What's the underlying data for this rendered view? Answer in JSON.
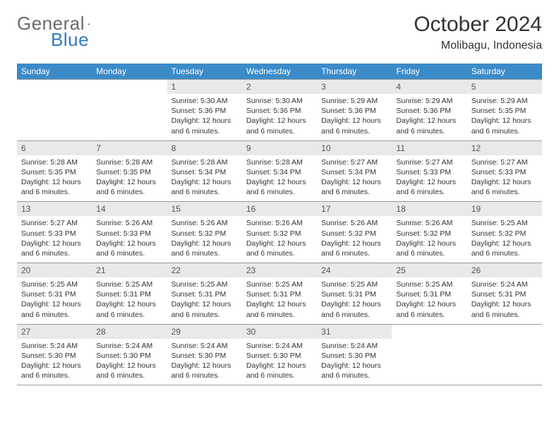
{
  "logo": {
    "word1": "General",
    "word2": "Blue"
  },
  "title": "October 2024",
  "subtitle": "Molibagu, Indonesia",
  "colors": {
    "header_bg": "#3b8bc9",
    "daynum_bg": "#e8e9ea",
    "border": "#9a9a9a",
    "logo_gray": "#676a6d",
    "logo_blue": "#2f7bbd"
  },
  "day_headers": [
    "Sunday",
    "Monday",
    "Tuesday",
    "Wednesday",
    "Thursday",
    "Friday",
    "Saturday"
  ],
  "weeks": [
    [
      {
        "blank": true
      },
      {
        "blank": true
      },
      {
        "n": "1",
        "sr": "5:30 AM",
        "ss": "5:36 PM",
        "dl": "12 hours and 6 minutes."
      },
      {
        "n": "2",
        "sr": "5:30 AM",
        "ss": "5:36 PM",
        "dl": "12 hours and 6 minutes."
      },
      {
        "n": "3",
        "sr": "5:29 AM",
        "ss": "5:36 PM",
        "dl": "12 hours and 6 minutes."
      },
      {
        "n": "4",
        "sr": "5:29 AM",
        "ss": "5:36 PM",
        "dl": "12 hours and 6 minutes."
      },
      {
        "n": "5",
        "sr": "5:29 AM",
        "ss": "5:35 PM",
        "dl": "12 hours and 6 minutes."
      }
    ],
    [
      {
        "n": "6",
        "sr": "5:28 AM",
        "ss": "5:35 PM",
        "dl": "12 hours and 6 minutes."
      },
      {
        "n": "7",
        "sr": "5:28 AM",
        "ss": "5:35 PM",
        "dl": "12 hours and 6 minutes."
      },
      {
        "n": "8",
        "sr": "5:28 AM",
        "ss": "5:34 PM",
        "dl": "12 hours and 6 minutes."
      },
      {
        "n": "9",
        "sr": "5:28 AM",
        "ss": "5:34 PM",
        "dl": "12 hours and 6 minutes."
      },
      {
        "n": "10",
        "sr": "5:27 AM",
        "ss": "5:34 PM",
        "dl": "12 hours and 6 minutes."
      },
      {
        "n": "11",
        "sr": "5:27 AM",
        "ss": "5:33 PM",
        "dl": "12 hours and 6 minutes."
      },
      {
        "n": "12",
        "sr": "5:27 AM",
        "ss": "5:33 PM",
        "dl": "12 hours and 6 minutes."
      }
    ],
    [
      {
        "n": "13",
        "sr": "5:27 AM",
        "ss": "5:33 PM",
        "dl": "12 hours and 6 minutes."
      },
      {
        "n": "14",
        "sr": "5:26 AM",
        "ss": "5:33 PM",
        "dl": "12 hours and 6 minutes."
      },
      {
        "n": "15",
        "sr": "5:26 AM",
        "ss": "5:32 PM",
        "dl": "12 hours and 6 minutes."
      },
      {
        "n": "16",
        "sr": "5:26 AM",
        "ss": "5:32 PM",
        "dl": "12 hours and 6 minutes."
      },
      {
        "n": "17",
        "sr": "5:26 AM",
        "ss": "5:32 PM",
        "dl": "12 hours and 6 minutes."
      },
      {
        "n": "18",
        "sr": "5:26 AM",
        "ss": "5:32 PM",
        "dl": "12 hours and 6 minutes."
      },
      {
        "n": "19",
        "sr": "5:25 AM",
        "ss": "5:32 PM",
        "dl": "12 hours and 6 minutes."
      }
    ],
    [
      {
        "n": "20",
        "sr": "5:25 AM",
        "ss": "5:31 PM",
        "dl": "12 hours and 6 minutes."
      },
      {
        "n": "21",
        "sr": "5:25 AM",
        "ss": "5:31 PM",
        "dl": "12 hours and 6 minutes."
      },
      {
        "n": "22",
        "sr": "5:25 AM",
        "ss": "5:31 PM",
        "dl": "12 hours and 6 minutes."
      },
      {
        "n": "23",
        "sr": "5:25 AM",
        "ss": "5:31 PM",
        "dl": "12 hours and 6 minutes."
      },
      {
        "n": "24",
        "sr": "5:25 AM",
        "ss": "5:31 PM",
        "dl": "12 hours and 6 minutes."
      },
      {
        "n": "25",
        "sr": "5:25 AM",
        "ss": "5:31 PM",
        "dl": "12 hours and 6 minutes."
      },
      {
        "n": "26",
        "sr": "5:24 AM",
        "ss": "5:31 PM",
        "dl": "12 hours and 6 minutes."
      }
    ],
    [
      {
        "n": "27",
        "sr": "5:24 AM",
        "ss": "5:30 PM",
        "dl": "12 hours and 6 minutes."
      },
      {
        "n": "28",
        "sr": "5:24 AM",
        "ss": "5:30 PM",
        "dl": "12 hours and 6 minutes."
      },
      {
        "n": "29",
        "sr": "5:24 AM",
        "ss": "5:30 PM",
        "dl": "12 hours and 6 minutes."
      },
      {
        "n": "30",
        "sr": "5:24 AM",
        "ss": "5:30 PM",
        "dl": "12 hours and 6 minutes."
      },
      {
        "n": "31",
        "sr": "5:24 AM",
        "ss": "5:30 PM",
        "dl": "12 hours and 6 minutes."
      },
      {
        "blank": true
      },
      {
        "blank": true
      }
    ]
  ],
  "labels": {
    "sunrise": "Sunrise: ",
    "sunset": "Sunset: ",
    "daylight": "Daylight: "
  }
}
